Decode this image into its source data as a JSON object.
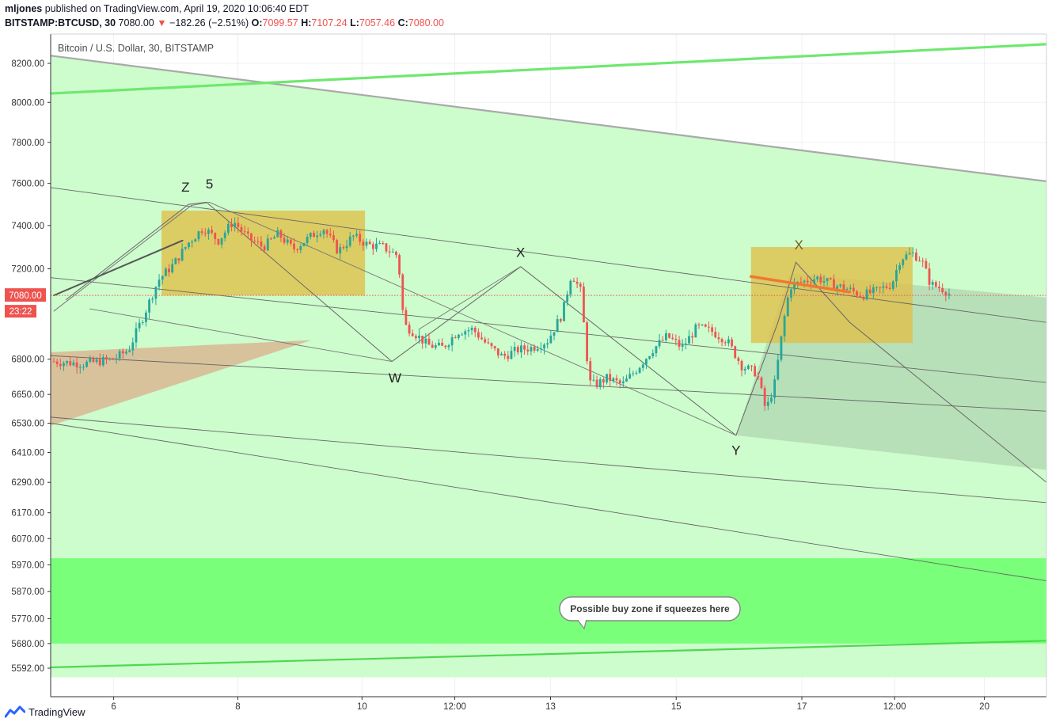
{
  "header": {
    "user": "mljones",
    "published_text": "published on TradingView.com, April 19, 2020 10:06:40 EDT",
    "symbol": "BITSTAMP:BTCUSD, 30",
    "last": "7080.00",
    "change_arrow": "▼",
    "change": "−182.26 (−2.51%)",
    "o_label": "O:",
    "o_value": "7099.57",
    "h_label": "H:",
    "h_value": "7107.24",
    "l_label": "L:",
    "l_value": "7057.46",
    "c_label": "C:",
    "c_value": "7080.00"
  },
  "chart_title": "Bitcoin / U.S. Dollar, 30, BITSTAMP",
  "footer": {
    "brand": "TradingView",
    "logo_icon": "tradingview-logo-icon"
  },
  "chart_data": {
    "type": "candlestick",
    "title": "Bitcoin / U.S. Dollar, 30, BITSTAMP",
    "interval": "30",
    "y_axis_ticks": [
      "8200.00",
      "8000.00",
      "7800.00",
      "7600.00",
      "7400.00",
      "7200.00",
      "6800.00",
      "6650.00",
      "6530.00",
      "6410.00",
      "6290.00",
      "6170.00",
      "6070.00",
      "5970.00",
      "5870.00",
      "5770.00",
      "5680.00",
      "5592.00"
    ],
    "y_axis_scale": "log",
    "x_axis_ticks": [
      "6",
      "8",
      "10",
      "12:00",
      "13",
      "15",
      "17",
      "12:00",
      "20"
    ],
    "last_price_label": "7080.00",
    "countdown_label": "23:22",
    "price_path": [
      [
        0.0,
        6790
      ],
      [
        1.0,
        6780
      ],
      [
        2.0,
        6800
      ],
      [
        2.5,
        6840
      ],
      [
        3.0,
        6990
      ],
      [
        3.5,
        7150
      ],
      [
        4.0,
        7220
      ],
      [
        4.5,
        7320
      ],
      [
        5.0,
        7390
      ],
      [
        5.5,
        7330
      ],
      [
        6.0,
        7420
      ],
      [
        6.5,
        7340
      ],
      [
        7.0,
        7300
      ],
      [
        7.5,
        7360
      ],
      [
        8.0,
        7290
      ],
      [
        8.5,
        7340
      ],
      [
        9.0,
        7390
      ],
      [
        9.5,
        7280
      ],
      [
        10.0,
        7350
      ],
      [
        10.5,
        7310
      ],
      [
        11.0,
        7300
      ],
      [
        11.5,
        7260
      ],
      [
        11.7,
        6950
      ],
      [
        12.0,
        6920
      ],
      [
        12.5,
        6860
      ],
      [
        13.0,
        6850
      ],
      [
        13.5,
        6920
      ],
      [
        14.0,
        6930
      ],
      [
        14.5,
        6860
      ],
      [
        15.0,
        6810
      ],
      [
        15.5,
        6840
      ],
      [
        16.0,
        6850
      ],
      [
        16.5,
        6880
      ],
      [
        17.0,
        7000
      ],
      [
        17.3,
        7180
      ],
      [
        17.6,
        7100
      ],
      [
        17.9,
        6700
      ],
      [
        18.1,
        6690
      ],
      [
        18.5,
        6720
      ],
      [
        19.0,
        6690
      ],
      [
        19.5,
        6760
      ],
      [
        20.0,
        6840
      ],
      [
        20.5,
        6900
      ],
      [
        21.0,
        6850
      ],
      [
        21.5,
        6940
      ],
      [
        22.0,
        6920
      ],
      [
        22.5,
        6880
      ],
      [
        23.0,
        6770
      ],
      [
        23.5,
        6740
      ],
      [
        23.8,
        6580
      ],
      [
        24.1,
        6700
      ],
      [
        24.4,
        6970
      ],
      [
        24.6,
        7120
      ],
      [
        25.0,
        7140
      ],
      [
        25.5,
        7160
      ],
      [
        26.0,
        7130
      ],
      [
        26.5,
        7110
      ],
      [
        27.0,
        7080
      ],
      [
        27.5,
        7100
      ],
      [
        28.0,
        7130
      ],
      [
        28.3,
        7250
      ],
      [
        28.7,
        7270
      ],
      [
        29.0,
        7240
      ],
      [
        29.3,
        7130
      ],
      [
        29.7,
        7110
      ],
      [
        30.0,
        7080
      ]
    ],
    "pattern_labels": [
      "Z",
      "5",
      "X",
      "W",
      "X",
      "Y"
    ],
    "annotations": [
      "Possible buy zone if squeezes here"
    ],
    "grid": true,
    "background_zones": [
      {
        "name": "channel-zone",
        "color": "#cdfccd"
      },
      {
        "name": "buy-zone",
        "range": [
          5680,
          5995
        ],
        "color": "#79ff79"
      }
    ],
    "consolidation_boxes": [
      {
        "range": [
          7080,
          7470
        ],
        "color": "#e0bf4a"
      },
      {
        "range": [
          6870,
          7300
        ],
        "color": "#e0bf4a"
      }
    ],
    "colors": {
      "up": "#26a69a",
      "down": "#ef5350",
      "line": "#6b6b6b",
      "green_line": "#6ee86e",
      "orange_line": "#f07830"
    }
  }
}
